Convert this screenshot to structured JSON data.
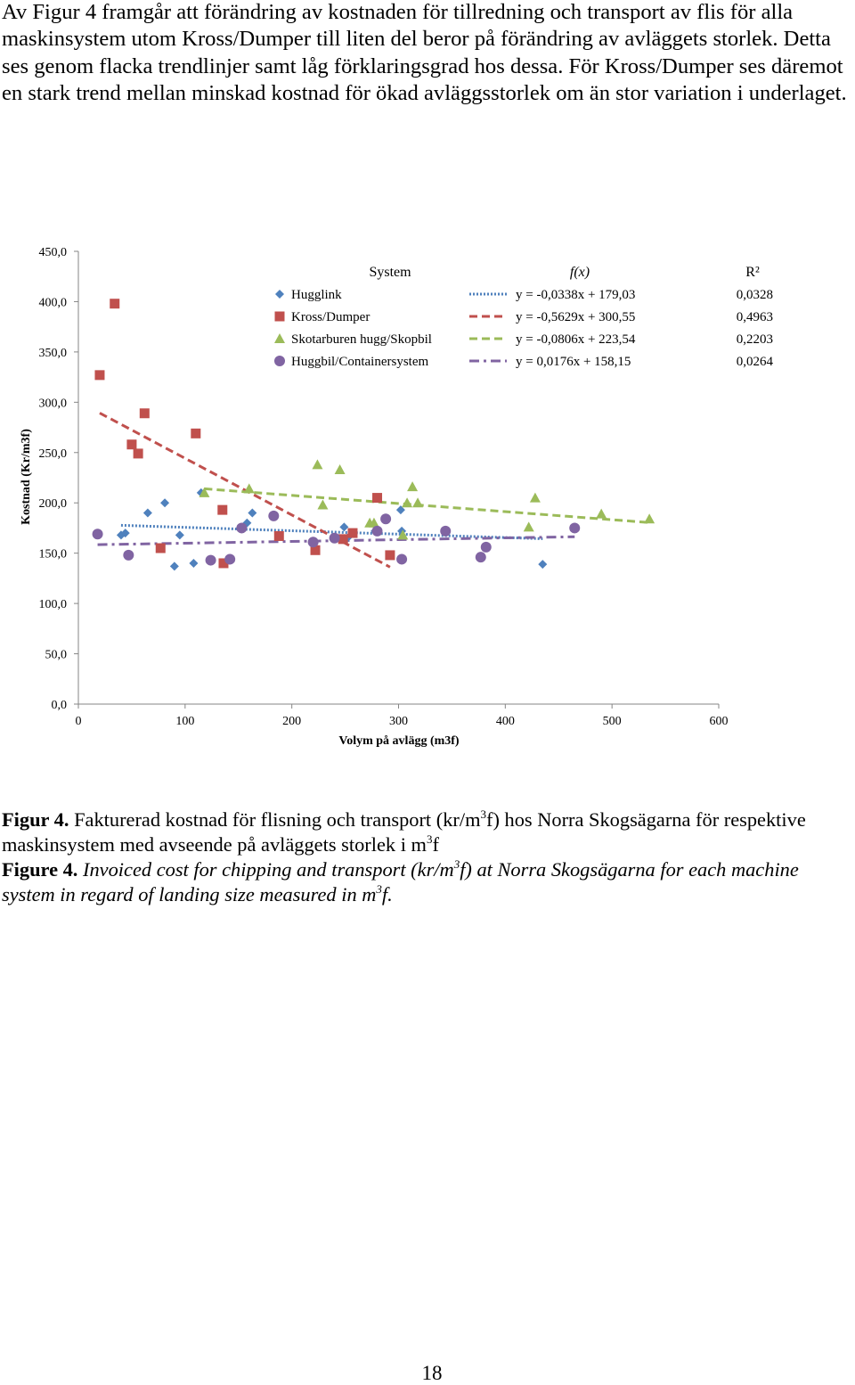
{
  "intro": "Av Figur 4 framgår att förändring av kostnaden för tillredning och transport av flis för alla maskinsystem utom Kross/Dumper till liten del beror på förändring av avläggets storlek. Detta ses genom flacka trendlinjer samt låg förklaringsgrad hos dessa. För Kross/Dumper ses däremot en stark trend mellan minskad kostnad för ökad avläggsstorlek om än stor variation i underlaget.",
  "caption_sv": {
    "label": "Figur 4.",
    "text_a": " Fakturerad kostnad för flisning och transport (kr/m",
    "sup_a": "3",
    "text_b": "f) hos Norra Skogsägarna för respektive maskinsystem med avseende på avläggets storlek i m",
    "sup_b": "3",
    "text_c": "f"
  },
  "caption_en": {
    "label": "Figure 4.",
    "text_a": " Invoiced cost for chipping and transport (kr/m",
    "sup_a": "3",
    "text_b": "f) at Norra Skogsägarna for each machine system in regard of landing size measured in m",
    "sup_b": "3",
    "text_c": "f."
  },
  "page_number": "18",
  "chart_data": {
    "type": "scatter",
    "xlabel": "Volym på avlägg (m3f)",
    "ylabel": "Kostnad (Kr/m3f)",
    "xlim": [
      0,
      600
    ],
    "ylim": [
      0,
      450
    ],
    "x_ticks": [
      "0",
      "100",
      "200",
      "300",
      "400",
      "500",
      "600"
    ],
    "y_ticks": [
      "0,0",
      "50,0",
      "100,0",
      "150,0",
      "200,0",
      "250,0",
      "300,0",
      "350,0",
      "400,0",
      "450,0"
    ],
    "grid": false,
    "legend": {
      "position": "top-right",
      "col_system": "System",
      "col_fx": "f(x)",
      "col_r2": "R²"
    },
    "series": [
      {
        "name": "Hugglink",
        "marker": "diamond",
        "color": "#4f81bd",
        "line_style": "dotted",
        "equation": "y = -0,0338x + 179,03",
        "r2": "0,0328",
        "trend": {
          "slope": -0.0338,
          "intercept": 179.03,
          "x_range": [
            40,
            435
          ]
        },
        "x": [
          40,
          44,
          65,
          81,
          90,
          95,
          108,
          115,
          158,
          163,
          249,
          252,
          278,
          302,
          303,
          435
        ],
        "y": [
          168,
          170,
          190,
          200,
          137,
          168,
          140,
          210,
          180,
          190,
          176,
          165,
          172,
          193,
          172,
          139
        ]
      },
      {
        "name": "Kross/Dumper",
        "marker": "square",
        "color": "#c0504d",
        "line_style": "dashed",
        "equation": "y = -0,5629x + 300,55",
        "r2": "0,4963",
        "trend": {
          "slope": -0.5629,
          "intercept": 300.55,
          "x_range": [
            20,
            292
          ]
        },
        "x": [
          20,
          34,
          50,
          56,
          62,
          77,
          110,
          135,
          136,
          188,
          222,
          248,
          257,
          280,
          292
        ],
        "y": [
          327,
          398,
          258,
          249,
          289,
          155,
          269,
          193,
          140,
          167,
          153,
          164,
          170,
          205,
          148
        ]
      },
      {
        "name": "Skotarburen hugg/Skopbil",
        "marker": "triangle",
        "color": "#9bbb59",
        "line_style": "dashed",
        "equation": "y = -0,0806x + 223,54",
        "r2": "0,2203",
        "trend": {
          "slope": -0.0806,
          "intercept": 223.54,
          "x_range": [
            118,
            535
          ]
        },
        "x": [
          118,
          160,
          224,
          229,
          245,
          273,
          277,
          304,
          308,
          313,
          318,
          422,
          428,
          490,
          535
        ],
        "y": [
          210,
          214,
          238,
          198,
          233,
          180,
          180,
          168,
          200,
          216,
          200,
          176,
          205,
          189,
          184
        ]
      },
      {
        "name": "Huggbil/Containersystem",
        "marker": "circle",
        "color": "#8064a2",
        "line_style": "dashdot",
        "equation": "y = 0,0176x + 158,15",
        "r2": "0,0264",
        "trend": {
          "slope": 0.0176,
          "intercept": 158.15,
          "x_range": [
            18,
            465
          ]
        },
        "x": [
          18,
          47,
          124,
          142,
          153,
          183,
          220,
          240,
          280,
          288,
          303,
          344,
          377,
          382,
          465
        ],
        "y": [
          169,
          148,
          143,
          144,
          175,
          187,
          161,
          165,
          172,
          184,
          144,
          172,
          146,
          156,
          175
        ]
      }
    ]
  }
}
